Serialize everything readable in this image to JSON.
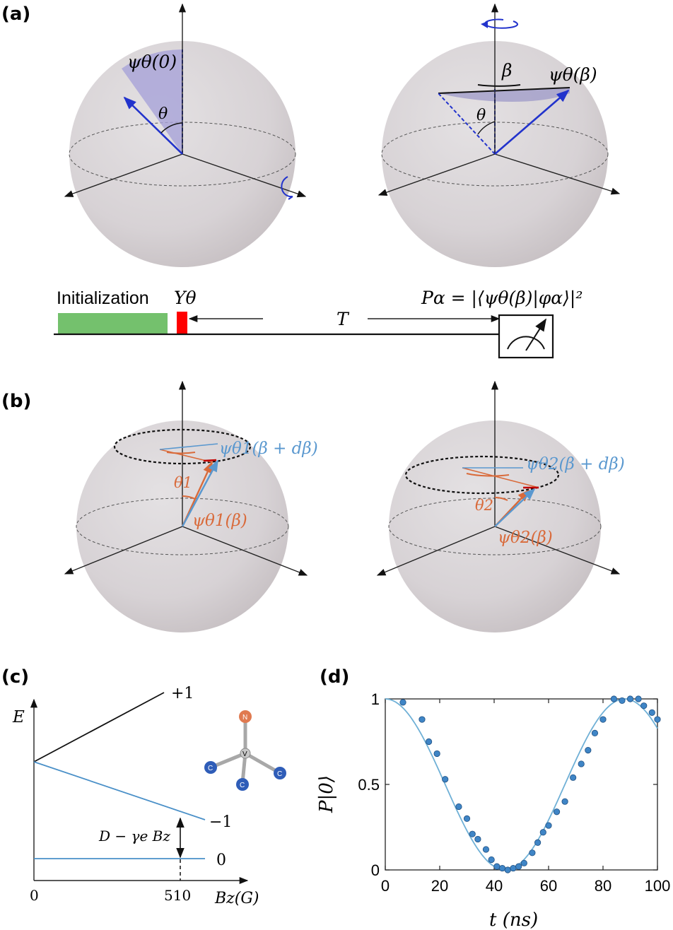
{
  "panels": {
    "a": "(a)",
    "b": "(b)",
    "c": "(c)",
    "d": "(d)"
  },
  "panel_a": {
    "left_state": "ψθ(0)",
    "left_angle": "θ",
    "right_state": "ψθ(β)",
    "right_azimuth": "β",
    "right_angle": "θ",
    "sequence": {
      "init_label": "Initialization",
      "pulse_label": "Yθ",
      "delay_label": "T",
      "measure_label": "Pα = |⟨ψθ(β)|φα⟩|²"
    }
  },
  "panel_b": {
    "left_state_upper": "ψθ1(β + dβ)",
    "left_state_lower": "ψθ1(β)",
    "left_angle": "θ1",
    "right_state_upper": "ψθ2(β + dβ)",
    "right_state_lower": "ψθ2(β)",
    "right_angle": "θ2"
  },
  "panel_c": {
    "y_label": "E",
    "levels": [
      "+1",
      "−1",
      "0"
    ],
    "gap_label": "D − γe Bz",
    "x_ticks": [
      "0",
      "510"
    ],
    "x_label": "Bz(G)",
    "atoms": {
      "n": "N",
      "v": "V",
      "c": "C"
    }
  },
  "chart_data": {
    "type": "scatter",
    "title": "",
    "xlabel": "t (ns)",
    "ylabel": "P|0⟩",
    "xlim": [
      0,
      100
    ],
    "ylim": [
      0,
      1
    ],
    "x_ticks": [
      0,
      20,
      40,
      60,
      80,
      100
    ],
    "y_ticks": [
      0,
      0.5,
      1
    ],
    "y_tick_labels": [
      "0",
      "0.5",
      "1"
    ],
    "points": [
      [
        6.5,
        0.98
      ],
      [
        13.5,
        0.88
      ],
      [
        16,
        0.75
      ],
      [
        19,
        0.68
      ],
      [
        22,
        0.53
      ],
      [
        27,
        0.37
      ],
      [
        30,
        0.3
      ],
      [
        32,
        0.21
      ],
      [
        34,
        0.18
      ],
      [
        37,
        0.12
      ],
      [
        39,
        0.06
      ],
      [
        41,
        0.02
      ],
      [
        43,
        0.01
      ],
      [
        45,
        0.0
      ],
      [
        47,
        0.01
      ],
      [
        49,
        0.02
      ],
      [
        51,
        0.04
      ],
      [
        54,
        0.1
      ],
      [
        56,
        0.16
      ],
      [
        58,
        0.22
      ],
      [
        60,
        0.26
      ],
      [
        63,
        0.34
      ],
      [
        66,
        0.4
      ],
      [
        69,
        0.54
      ],
      [
        72,
        0.62
      ],
      [
        74.5,
        0.7
      ],
      [
        77,
        0.8
      ],
      [
        80,
        0.88
      ],
      [
        84,
        1.0
      ],
      [
        87,
        0.99
      ],
      [
        90,
        1.0
      ],
      [
        93,
        1.0
      ],
      [
        95,
        0.96
      ],
      [
        98,
        0.92
      ],
      [
        100,
        0.88
      ]
    ],
    "fit": {
      "form": "cos^2(pi*t/T)",
      "period_ns": 88
    },
    "colors": {
      "points": "#3f85c6",
      "fit": "#6fb0d6"
    }
  }
}
